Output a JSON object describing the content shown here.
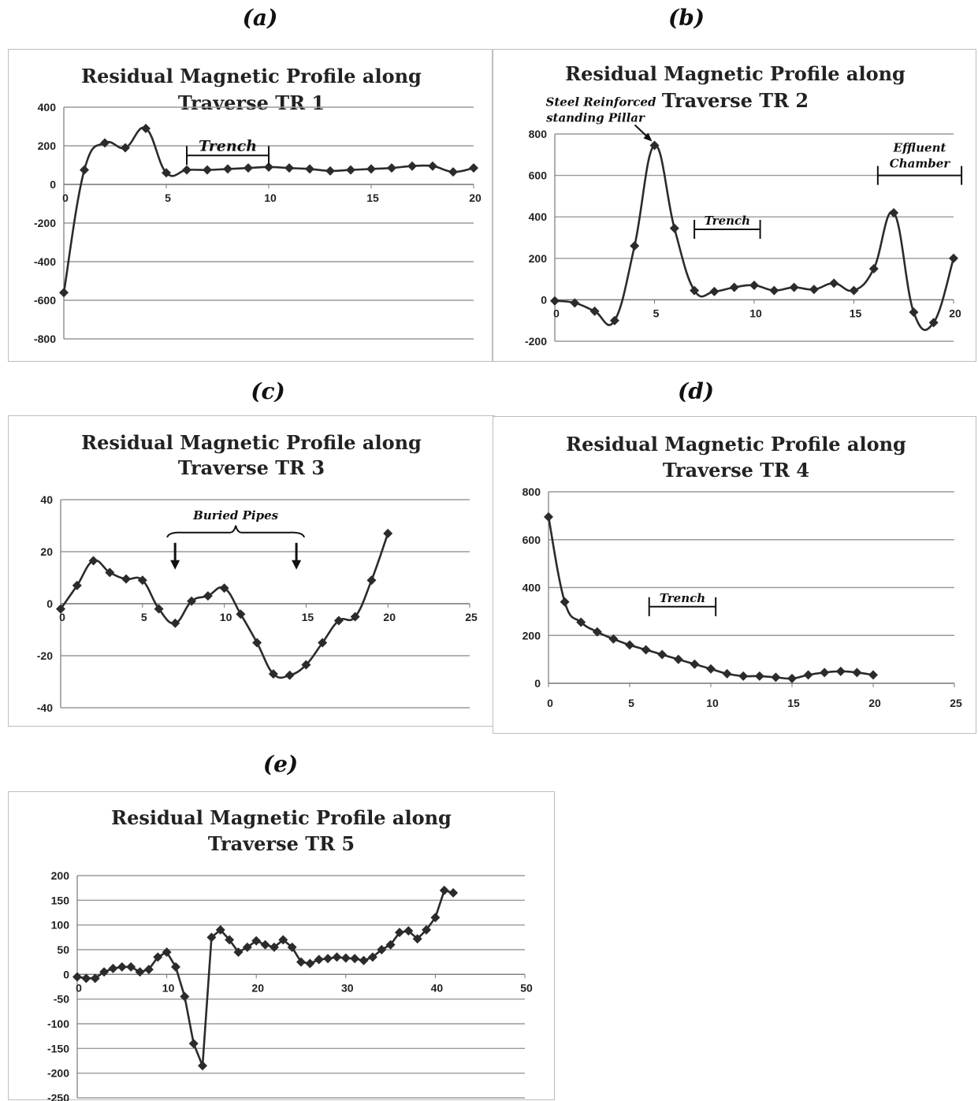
{
  "labels": {
    "a": "(a)",
    "b": "(b)",
    "c": "(c)",
    "d": "(d)",
    "e": "(e)"
  },
  "chart_data": [
    {
      "id": "a",
      "type": "line",
      "title": [
        "Residual Magnetic Profile along",
        "Traverse TR 1"
      ],
      "xlim": [
        0,
        20
      ],
      "ylim": [
        -800,
        400
      ],
      "xticks": [
        0,
        5,
        10,
        15,
        20
      ],
      "yticks": [
        400,
        200,
        0,
        -200,
        -400,
        -600,
        -800
      ],
      "grid": true,
      "smooth": true,
      "series": [
        {
          "x": [
            0,
            1,
            2,
            3,
            4,
            5,
            6,
            7,
            8,
            9,
            10,
            11,
            12,
            13,
            14,
            15,
            16,
            17,
            18,
            19,
            20
          ],
          "y": [
            -560,
            75,
            215,
            190,
            290,
            60,
            75,
            75,
            80,
            85,
            90,
            85,
            80,
            70,
            75,
            80,
            85,
            95,
            95,
            65,
            85
          ]
        }
      ],
      "annotations": [
        {
          "text": "Trench",
          "x1": 6,
          "x2": 10,
          "y": 150,
          "kind": "bracket"
        }
      ]
    },
    {
      "id": "b",
      "type": "line",
      "title": [
        "Residual Magnetic Profile along",
        "Traverse TR 2"
      ],
      "xlim": [
        0,
        20
      ],
      "ylim": [
        -200,
        800
      ],
      "xticks": [
        0,
        5,
        10,
        15,
        20
      ],
      "yticks": [
        800,
        600,
        400,
        200,
        0,
        -200
      ],
      "grid": true,
      "smooth": true,
      "series": [
        {
          "x": [
            0,
            1,
            2,
            3,
            4,
            5,
            6,
            7,
            8,
            9,
            10,
            11,
            12,
            13,
            14,
            15,
            16,
            17,
            18,
            19,
            20
          ],
          "y": [
            -5,
            -15,
            -55,
            -100,
            260,
            745,
            345,
            45,
            40,
            60,
            70,
            45,
            60,
            50,
            80,
            45,
            150,
            420,
            -60,
            -110,
            200
          ]
        }
      ],
      "annotations": [
        {
          "text": "Trench",
          "x1": 7,
          "x2": 10.3,
          "y": 340,
          "kind": "bracket"
        },
        {
          "text": "Effluent Chamber",
          "x1": 16.2,
          "x2": 20.4,
          "y": 600,
          "kind": "bracket"
        },
        {
          "text": "Steel Reinforced standing Pillar",
          "x": 5,
          "y": 745,
          "kind": "arrow"
        }
      ]
    },
    {
      "id": "c",
      "type": "line",
      "title": [
        "Residual Magnetic Profile along",
        "Traverse TR 3"
      ],
      "xlim": [
        0,
        25
      ],
      "ylim": [
        -40,
        40
      ],
      "xticks": [
        0,
        5,
        10,
        15,
        20,
        25
      ],
      "yticks": [
        40,
        20,
        0,
        -20,
        -40
      ],
      "grid": true,
      "smooth": true,
      "series": [
        {
          "x": [
            0,
            1,
            2,
            3,
            4,
            5,
            6,
            7,
            8,
            9,
            10,
            11,
            12,
            13,
            14,
            15,
            16,
            17,
            18,
            19,
            20
          ],
          "y": [
            -2,
            7,
            16.5,
            12,
            9.5,
            9,
            -2,
            -7.5,
            1,
            3,
            6,
            -4,
            -15,
            -27,
            -27.5,
            -23.5,
            -15,
            -6.5,
            -5,
            9,
            27
          ]
        }
      ],
      "annotations": [
        {
          "text": "Buried Pipes",
          "x1": 6.8,
          "x2": 14.6,
          "y": 24,
          "kind": "brace"
        }
      ]
    },
    {
      "id": "d",
      "type": "line",
      "title": [
        "Residual Magnetic Profile along",
        "Traverse TR 4"
      ],
      "xlim": [
        0,
        25
      ],
      "ylim": [
        0,
        800
      ],
      "xticks": [
        0,
        5,
        10,
        15,
        20,
        25
      ],
      "yticks": [
        800,
        600,
        400,
        200,
        0
      ],
      "grid": true,
      "smooth": true,
      "series": [
        {
          "x": [
            0,
            1,
            2,
            3,
            4,
            5,
            6,
            7,
            8,
            9,
            10,
            11,
            12,
            13,
            14,
            15,
            16,
            17,
            18,
            19,
            20
          ],
          "y": [
            695,
            340,
            255,
            215,
            185,
            160,
            140,
            120,
            100,
            80,
            60,
            40,
            30,
            30,
            25,
            20,
            35,
            45,
            50,
            45,
            35
          ]
        }
      ],
      "annotations": [
        {
          "text": "Trench",
          "x1": 6.2,
          "x2": 10.3,
          "y": 320,
          "kind": "bracket"
        }
      ]
    },
    {
      "id": "e",
      "type": "line",
      "title": [
        "Residual Magnetic Profile along",
        "Traverse TR 5"
      ],
      "xlim": [
        0,
        50
      ],
      "ylim": [
        -250,
        200
      ],
      "xticks": [
        0,
        10,
        20,
        30,
        40,
        50
      ],
      "yticks": [
        200,
        150,
        100,
        50,
        0,
        -50,
        -100,
        -150,
        -200,
        -250
      ],
      "grid": true,
      "smooth": false,
      "series": [
        {
          "x": [
            0,
            1,
            2,
            3,
            4,
            5,
            6,
            7,
            8,
            9,
            10,
            11,
            12,
            13,
            14,
            15,
            16,
            17,
            18,
            19,
            20,
            21,
            22,
            23,
            24,
            25,
            26,
            27,
            28,
            29,
            30,
            31,
            32,
            33,
            34,
            35,
            36,
            37,
            38,
            39,
            40,
            41,
            42
          ],
          "y": [
            -5,
            -8,
            -8,
            5,
            12,
            15,
            15,
            5,
            10,
            35,
            45,
            15,
            -45,
            -140,
            -185,
            75,
            90,
            70,
            45,
            55,
            68,
            60,
            55,
            70,
            55,
            25,
            22,
            30,
            32,
            35,
            33,
            32,
            28,
            35,
            50,
            60,
            85,
            88,
            72,
            90,
            115,
            170,
            165
          ]
        }
      ],
      "annotations": []
    }
  ]
}
